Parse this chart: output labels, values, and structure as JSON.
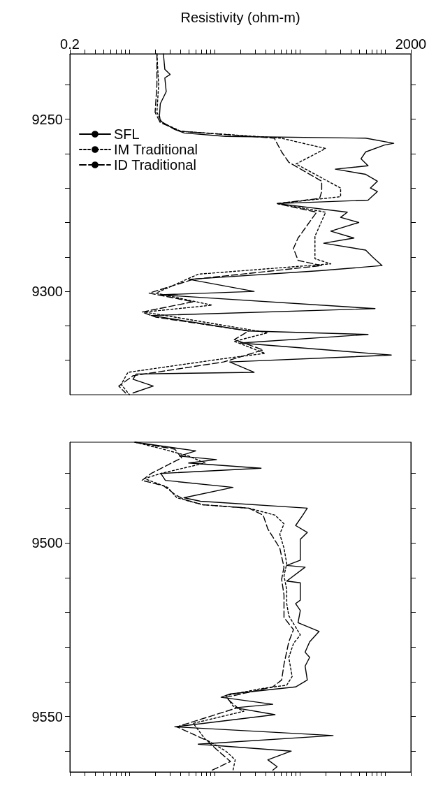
{
  "chart_data": [
    {
      "type": "line",
      "xlabel": "Resistivity (ohm-m)",
      "log": "x",
      "legend": "top left",
      "xlim": [
        0.2,
        2000
      ],
      "ylim": [
        9330,
        9231
      ],
      "xticks": [
        0.2,
        {
          "value": 0.3,
          "label": null
        },
        {
          "value": 0.4,
          "label": null
        },
        {
          "value": 0.5,
          "label": null
        },
        {
          "value": 0.6,
          "label": null
        },
        {
          "value": 0.7,
          "label": null
        },
        {
          "value": 0.8,
          "label": null
        },
        {
          "value": 0.9,
          "label": null
        },
        {
          "value": 1,
          "label": null
        },
        {
          "value": 2,
          "label": null
        },
        {
          "value": 3,
          "label": null
        },
        {
          "value": 4,
          "label": null
        },
        {
          "value": 5,
          "label": null
        },
        {
          "value": 6,
          "label": null
        },
        {
          "value": 7,
          "label": null
        },
        {
          "value": 8,
          "label": null
        },
        {
          "value": 9,
          "label": null
        },
        {
          "value": 10,
          "label": null
        },
        {
          "value": 20,
          "label": null
        },
        {
          "value": 30,
          "label": null
        },
        {
          "value": 40,
          "label": null
        },
        {
          "value": 50,
          "label": null
        },
        {
          "value": 60,
          "label": null
        },
        {
          "value": 70,
          "label": null
        },
        {
          "value": 80,
          "label": null
        },
        {
          "value": 90,
          "label": null
        },
        {
          "value": 100,
          "label": null
        },
        {
          "value": 200,
          "label": null
        },
        {
          "value": 300,
          "label": null
        },
        {
          "value": 400,
          "label": null
        },
        {
          "value": 500,
          "label": null
        },
        {
          "value": 600,
          "label": null
        },
        {
          "value": 700,
          "label": null
        },
        {
          "value": 800,
          "label": null
        },
        {
          "value": 900,
          "label": null
        },
        {
          "value": 1000,
          "label": null
        },
        2000
      ],
      "yticks": [
        {
          "value": 9240,
          "label": null
        },
        9250,
        {
          "value": 9260,
          "label": null
        },
        {
          "value": 9270,
          "label": null
        },
        {
          "value": 9280,
          "label": null
        },
        {
          "value": 9290,
          "label": null
        },
        9300,
        {
          "value": 9310,
          "label": null
        },
        {
          "value": 9320,
          "label": null
        }
      ],
      "series": [
        {
          "name": "SFL",
          "color": "#000000",
          "line_style": "solid",
          "x": [
            2.5,
            2.6,
            3.0,
            2.6,
            2.7,
            2.3,
            2.25,
            2.3,
            3.4,
            4.4,
            13.5,
            590,
            1260,
            980,
            590,
            520,
            630,
            260,
            590,
            810,
            670,
            810,
            630,
            54,
            360,
            300,
            490,
            230,
            430,
            190,
            590,
            710,
            920,
            170,
            5,
            29,
            2.3,
            760,
            1.8,
            25,
            630,
            20,
            1180,
            15,
            29,
            1.2,
            1.1,
            1.9,
            1.1
          ],
          "values": [
            9231,
            9235.5,
            9237,
            9238,
            9242,
            9245.5,
            9249,
            9250.5,
            9253,
            9254,
            9255,
            9255.5,
            9257,
            9257.5,
            9259.5,
            9261.5,
            9263.5,
            9264.5,
            9266,
            9268,
            9270,
            9271,
            9273.5,
            9274.5,
            9277,
            9278.5,
            9280,
            9282.5,
            9284.5,
            9286,
            9288,
            9290,
            9292.5,
            9294,
            9296.5,
            9300,
            9301,
            9305,
            9307,
            9311.5,
            9312.5,
            9315,
            9318.5,
            9320.5,
            9323.5,
            9324,
            9325.5,
            9327.5,
            9329.5
          ]
        },
        {
          "name": "IM Traditional",
          "color": "#000000",
          "line_style": "dotted",
          "x": [
            2.1,
            2.2,
            2.1,
            2.4,
            4,
            60,
            200,
            90,
            300,
            300,
            54,
            200,
            150,
            150,
            230,
            6.4,
            2.05,
            9.3,
            1.5,
            42,
            17,
            39,
            13,
            0.96,
            0.8,
            1.0
          ],
          "values": [
            9231,
            9240,
            9248,
            9251,
            9253.5,
            9255.5,
            9258.5,
            9263,
            9270,
            9272.5,
            9274.5,
            9277,
            9284,
            9290.5,
            9292,
            9295,
            9300.5,
            9304,
            9306,
            9312,
            9314.5,
            9318,
            9319.5,
            9323.5,
            9327,
            9330
          ]
        },
        {
          "name": "ID Traditional",
          "color": "#000000",
          "line_style": "dashed",
          "x": [
            2.1,
            2.1,
            2.0,
            2.3,
            4,
            50,
            61,
            74,
            180,
            180,
            170,
            54,
            157,
            95,
            84,
            95,
            180,
            5.6,
            1.7,
            5.6,
            1.4,
            2.05,
            25,
            17,
            37,
            12.7,
            1.1,
            0.75,
            0.9
          ],
          "values": [
            9231,
            9240,
            9248,
            9251,
            9253.5,
            9255.5,
            9259.5,
            9262.5,
            9268,
            9271,
            9273,
            9274.5,
            9277,
            9284.5,
            9287.5,
            9291,
            9292.5,
            9296.5,
            9300.5,
            9303,
            9306,
            9307.5,
            9311.5,
            9314,
            9317,
            9320.5,
            9324.5,
            9327.5,
            9329.5
          ]
        }
      ]
    },
    {
      "type": "line",
      "log": "x",
      "tick_labels": "y",
      "xlim": [
        0.2,
        2000
      ],
      "ylim": [
        9566,
        9471
      ],
      "xticks": [
        {
          "value": 0.2,
          "label": null
        },
        {
          "value": 0.3,
          "label": null
        },
        {
          "value": 0.4,
          "label": null
        },
        {
          "value": 0.5,
          "label": null
        },
        {
          "value": 0.6,
          "label": null
        },
        {
          "value": 0.7,
          "label": null
        },
        {
          "value": 0.8,
          "label": null
        },
        {
          "value": 0.9,
          "label": null
        },
        {
          "value": 1,
          "label": null
        },
        {
          "value": 2,
          "label": null
        },
        {
          "value": 3,
          "label": null
        },
        {
          "value": 4,
          "label": null
        },
        {
          "value": 5,
          "label": null
        },
        {
          "value": 6,
          "label": null
        },
        {
          "value": 7,
          "label": null
        },
        {
          "value": 8,
          "label": null
        },
        {
          "value": 9,
          "label": null
        },
        {
          "value": 10,
          "label": null
        },
        {
          "value": 20,
          "label": null
        },
        {
          "value": 30,
          "label": null
        },
        {
          "value": 40,
          "label": null
        },
        {
          "value": 50,
          "label": null
        },
        {
          "value": 60,
          "label": null
        },
        {
          "value": 70,
          "label": null
        },
        {
          "value": 80,
          "label": null
        },
        {
          "value": 90,
          "label": null
        },
        {
          "value": 100,
          "label": null
        },
        {
          "value": 200,
          "label": null
        },
        {
          "value": 300,
          "label": null
        },
        {
          "value": 400,
          "label": null
        },
        {
          "value": 500,
          "label": null
        },
        {
          "value": 600,
          "label": null
        },
        {
          "value": 700,
          "label": null
        },
        {
          "value": 800,
          "label": null
        },
        {
          "value": 900,
          "label": null
        },
        {
          "value": 1000,
          "label": null
        },
        {
          "value": 2000,
          "label": null
        }
      ],
      "yticks": [
        {
          "value": 9480,
          "label": null
        },
        {
          "value": 9490,
          "label": null
        },
        9500,
        {
          "value": 9510,
          "label": null
        },
        {
          "value": 9520,
          "label": null
        },
        {
          "value": 9530,
          "label": null
        },
        {
          "value": 9540,
          "label": null
        },
        9550,
        {
          "value": 9560,
          "label": null
        }
      ],
      "series": [
        {
          "color": "#000000",
          "line_style": "solid",
          "x": [
            1.16,
            6.0,
            3.85,
            10.5,
            4.95,
            35,
            2.33,
            2.64,
            16.4,
            4.36,
            6.8,
            122,
            108,
            89,
            122,
            101,
            101,
            70,
            115,
            70,
            101,
            101,
            101,
            89,
            101,
            95,
            168,
            130,
            115,
            130,
            115,
            122,
            89,
            15.3,
            11.9,
            48,
            17.4,
            51,
            3.4,
            245,
            6.4,
            79,
            42,
            54,
            48
          ],
          "values": [
            9471,
            9473.5,
            9475,
            9476,
            9477,
            9478.5,
            9480,
            9482,
            9484,
            9487,
            9488,
            9490,
            9492,
            9495,
            9497,
            9499,
            9505,
            9506.5,
            9507,
            9511,
            9511.5,
            9515,
            9516.5,
            9517.5,
            9519.5,
            9523,
            9525.5,
            9528.5,
            9531.5,
            9533,
            9535.5,
            9539.5,
            9541.5,
            9543.5,
            9544.5,
            9546.5,
            9547.5,
            9549.5,
            9553,
            9555.5,
            9558,
            9560,
            9562.5,
            9564.5,
            9565.5
          ]
        },
        {
          "color": "#000000",
          "line_style": "dotted",
          "x": [
            1.16,
            2.48,
            4.95,
            7.7,
            2.33,
            1.5,
            2.8,
            3.6,
            7.2,
            25,
            51,
            65,
            58,
            65,
            70,
            65,
            70,
            70,
            70,
            74,
            101,
            84,
            74,
            81,
            70,
            35,
            13.5,
            16.4,
            22,
            5.6,
            7.7,
            13.5,
            17.4,
            16.4
          ],
          "values": [
            9471,
            9473,
            9475,
            9477,
            9480,
            9481.5,
            9484,
            9487,
            9489,
            9490,
            9492,
            9494.5,
            9497.5,
            9501.5,
            9506,
            9509.5,
            9513.5,
            9516.5,
            9517.5,
            9521,
            9526.5,
            9529,
            9533,
            9538.5,
            9541,
            9542,
            9544,
            9547,
            9548.5,
            9552,
            9556.5,
            9560,
            9562.5,
            9565.5
          ]
        },
        {
          "color": "#000000",
          "line_style": "dashed",
          "x": [
            1.16,
            3.4,
            4.1,
            1.8,
            1.4,
            2.5,
            3.4,
            4.36,
            7.2,
            25,
            37,
            42,
            58,
            65,
            61,
            65,
            65,
            65,
            84,
            74,
            65,
            61,
            48,
            13.5,
            18.5,
            3.6,
            8.2,
            10.5,
            15.3,
            9.3
          ],
          "values": [
            9471,
            9473,
            9475.5,
            9480,
            9482,
            9483.5,
            9486,
            9487.5,
            9489,
            9490,
            9492,
            9496,
            9501.5,
            9507,
            9510.5,
            9515,
            9517.5,
            9521.5,
            9525,
            9528.5,
            9535,
            9539.5,
            9541.5,
            9544.5,
            9547.5,
            9553,
            9557,
            9559.5,
            9563,
            9565.5
          ]
        }
      ]
    }
  ]
}
